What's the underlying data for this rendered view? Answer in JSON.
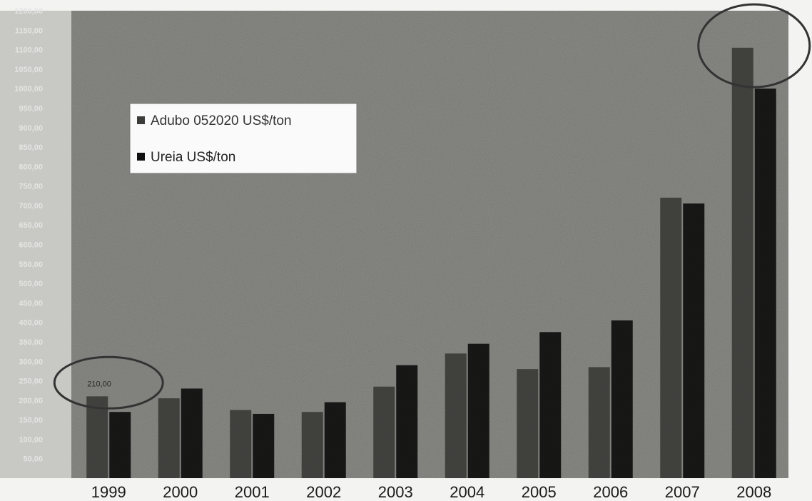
{
  "chart_data": {
    "type": "bar",
    "categories": [
      "1999",
      "2000",
      "2001",
      "2002",
      "2003",
      "2004",
      "2005",
      "2006",
      "2007",
      "2008"
    ],
    "series": [
      {
        "name": "Adubo 052020 US$/ton",
        "values": [
          210,
          205,
          175,
          170,
          235,
          320,
          280,
          285,
          720,
          1105
        ]
      },
      {
        "name": "Ureia US$/ton",
        "values": [
          170,
          230,
          165,
          195,
          290,
          345,
          375,
          405,
          705,
          1000
        ]
      }
    ],
    "ylim": [
      0,
      1200
    ],
    "yticks": [
      {
        "value": 50,
        "label": "50,00"
      },
      {
        "value": 100,
        "label": "100,00"
      },
      {
        "value": 150,
        "label": "150,00"
      },
      {
        "value": 200,
        "label": "200,00"
      },
      {
        "value": 250,
        "label": "250,00"
      },
      {
        "value": 300,
        "label": "300,00"
      },
      {
        "value": 350,
        "label": "350,00"
      },
      {
        "value": 400,
        "label": "400,00"
      },
      {
        "value": 450,
        "label": "450,00"
      },
      {
        "value": 500,
        "label": "500,00"
      },
      {
        "value": 550,
        "label": "550,00"
      },
      {
        "value": 600,
        "label": "600,00"
      },
      {
        "value": 650,
        "label": "650,00"
      },
      {
        "value": 700,
        "label": "700,00"
      },
      {
        "value": 750,
        "label": "750,00"
      },
      {
        "value": 800,
        "label": "800,00"
      },
      {
        "value": 850,
        "label": "850,00"
      },
      {
        "value": 900,
        "label": "900,00"
      },
      {
        "value": 950,
        "label": "950,00"
      },
      {
        "value": 1000,
        "label": "1000,00"
      },
      {
        "value": 1050,
        "label": "1050,00"
      },
      {
        "value": 1100,
        "label": "1100,00"
      },
      {
        "value": 1150,
        "label": "1150,00"
      },
      {
        "value": 1200,
        "label": "1200,00"
      }
    ],
    "legend": {
      "position": "top-left"
    },
    "annotations": [
      {
        "type": "ellipse",
        "category": "1999",
        "label": "210,00",
        "note": "hand-drawn circle around 1999 bars"
      },
      {
        "type": "ellipse",
        "category": "2008",
        "note": "hand-drawn circle around 2008 bar tops"
      }
    ],
    "grid": false,
    "colors": {
      "plot_bg": "#8a8a86",
      "adubo": "#3c3c3a",
      "ureia": "#111111",
      "axis_text": "#1a1a1a",
      "tick_text": "#e4e4e4",
      "legend_bg": "#fafafa",
      "ring": "#333333"
    }
  }
}
